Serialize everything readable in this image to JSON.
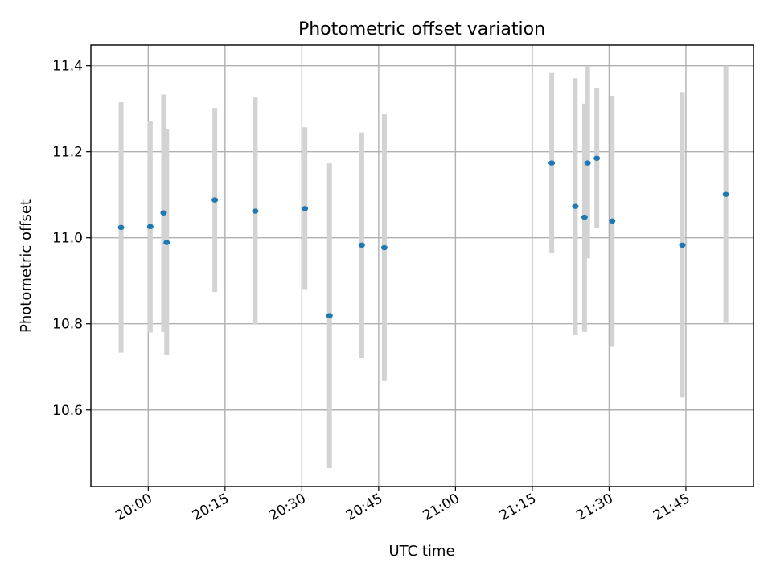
{
  "chart_data": {
    "type": "scatter",
    "title": "Photometric offset variation",
    "xlabel": "UTC time",
    "ylabel": "Photometric offset",
    "x_tick_labels": [
      "20:00",
      "20:15",
      "20:30",
      "20:45",
      "21:00",
      "21:15",
      "21:30",
      "21:45"
    ],
    "x_tick_minutes": [
      0,
      15,
      30,
      45,
      60,
      75,
      90,
      105
    ],
    "y_ticks": [
      10.6,
      10.8,
      11.0,
      11.2,
      11.4
    ],
    "y_tick_labels": [
      "10.6",
      "10.8",
      "11.0",
      "11.2",
      "11.4"
    ],
    "xlim_minutes": [
      -11.2,
      118.2
    ],
    "ylim": [
      10.422,
      11.448
    ],
    "grid": true,
    "colors": {
      "points": "#1f77b4",
      "error_bars": "#d3d3d3",
      "grid": "#b0b0b0"
    },
    "points": [
      {
        "t": -5.3,
        "y": 11.024,
        "err_low": 10.733,
        "err_high": 11.315
      },
      {
        "t": 0.4,
        "y": 11.026,
        "err_low": 10.78,
        "err_high": 11.272
      },
      {
        "t": 3.0,
        "y": 11.058,
        "err_low": 10.781,
        "err_high": 11.333
      },
      {
        "t": 3.6,
        "y": 10.989,
        "err_low": 10.727,
        "err_high": 11.252
      },
      {
        "t": 13.0,
        "y": 11.088,
        "err_low": 10.874,
        "err_high": 11.302
      },
      {
        "t": 20.9,
        "y": 11.062,
        "err_low": 10.798,
        "err_high": 11.326
      },
      {
        "t": 30.6,
        "y": 11.068,
        "err_low": 10.879,
        "err_high": 11.257
      },
      {
        "t": 35.4,
        "y": 10.819,
        "err_low": 10.465,
        "err_high": 11.173
      },
      {
        "t": 41.7,
        "y": 10.983,
        "err_low": 10.721,
        "err_high": 11.245
      },
      {
        "t": 46.1,
        "y": 10.977,
        "err_low": 10.667,
        "err_high": 11.287
      },
      {
        "t": 78.8,
        "y": 11.174,
        "err_low": 10.965,
        "err_high": 11.383
      },
      {
        "t": 83.4,
        "y": 11.073,
        "err_low": 10.775,
        "err_high": 11.371
      },
      {
        "t": 85.2,
        "y": 11.048,
        "err_low": 10.781,
        "err_high": 11.312
      },
      {
        "t": 85.8,
        "y": 11.174,
        "err_low": 10.952,
        "err_high": 11.398
      },
      {
        "t": 87.6,
        "y": 11.185,
        "err_low": 11.022,
        "err_high": 11.348
      },
      {
        "t": 90.6,
        "y": 11.039,
        "err_low": 10.748,
        "err_high": 11.33
      },
      {
        "t": 104.3,
        "y": 10.983,
        "err_low": 10.629,
        "err_high": 11.337
      },
      {
        "t": 112.8,
        "y": 11.101,
        "err_low": 10.802,
        "err_high": 11.4
      }
    ]
  }
}
